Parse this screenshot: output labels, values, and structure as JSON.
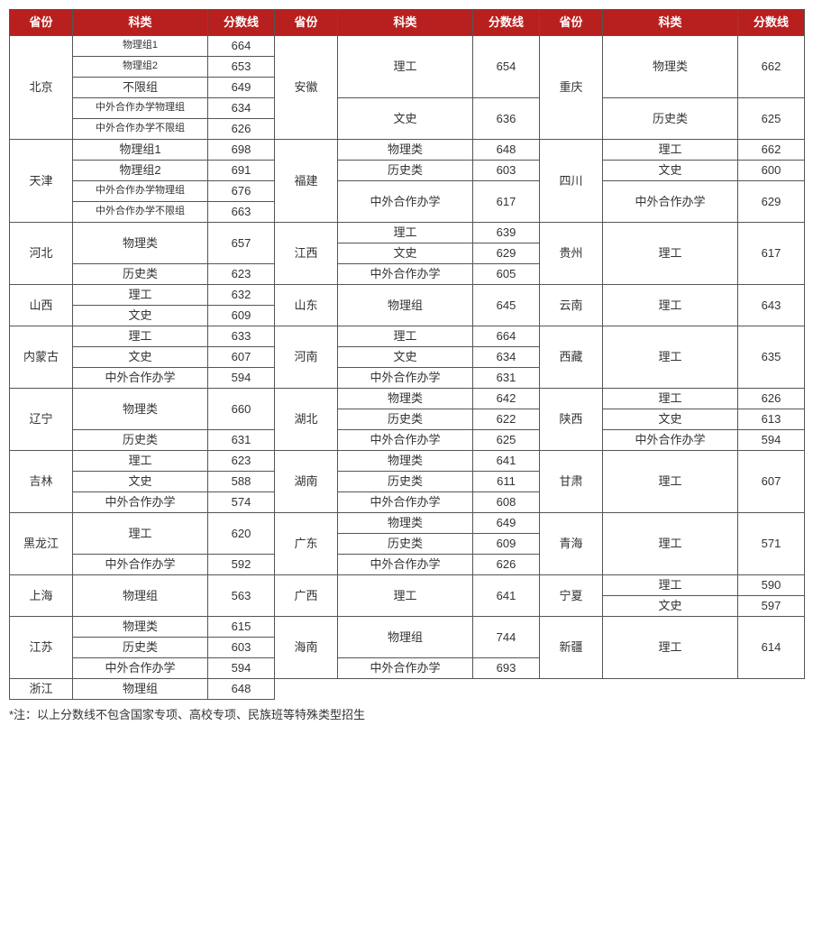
{
  "headers": {
    "province": "省份",
    "subject": "科类",
    "score": "分数线"
  },
  "footnote": "*注：以上分数线不包含国家专项、高校专项、民族班等特殊类型招生",
  "rows": [
    {
      "col1": {
        "prov": "北京",
        "span": 5
      },
      "r1": [
        {
          "t": "物理组1",
          "cls": "small"
        },
        {
          "t": "664"
        }
      ],
      "col2": {
        "prov": "安徽",
        "span": 5
      },
      "r2": [
        {
          "t": "理工",
          "span": 3
        },
        {
          "t": "654",
          "span": 3
        }
      ],
      "col3": {
        "prov": "重庆",
        "span": 5
      },
      "r3": [
        {
          "t": "物理类",
          "span": 3
        },
        {
          "t": "662",
          "span": 3
        }
      ]
    },
    {
      "r1": [
        {
          "t": "物理组2",
          "cls": "small"
        },
        {
          "t": "653"
        }
      ]
    },
    {
      "r1": [
        {
          "t": "不限组"
        },
        {
          "t": "649"
        }
      ]
    },
    {
      "r1": [
        {
          "t": "中外合作办学物理组",
          "cls": "small"
        },
        {
          "t": "634"
        }
      ],
      "r2": [
        {
          "t": "文史",
          "span": 2
        },
        {
          "t": "636",
          "span": 2
        }
      ],
      "r3": [
        {
          "t": "历史类",
          "span": 2
        },
        {
          "t": "625",
          "span": 2
        }
      ]
    },
    {
      "r1": [
        {
          "t": "中外合作办学不限组",
          "cls": "small"
        },
        {
          "t": "626"
        }
      ]
    },
    {
      "col1": {
        "prov": "天津",
        "span": 4
      },
      "r1": [
        {
          "t": "物理组1",
          "span": 1
        },
        {
          "t": "698",
          "span": 1
        }
      ],
      "col2": {
        "prov": "福建",
        "span": 4
      },
      "r2": [
        {
          "t": "物理类",
          "span": 1
        },
        {
          "t": "648",
          "span": 1
        }
      ],
      "col3": {
        "prov": "四川",
        "span": 4
      },
      "r3": [
        {
          "t": "理工",
          "span": 1
        },
        {
          "t": "662",
          "span": 1
        }
      ]
    },
    {
      "r1": [
        {
          "t": "物理组2"
        },
        {
          "t": "691"
        }
      ],
      "r2": [
        {
          "t": "历史类",
          "span": 1
        },
        {
          "t": "603",
          "span": 1
        }
      ],
      "r3": [
        {
          "t": "文史",
          "span": 1
        },
        {
          "t": "600",
          "span": 1
        }
      ]
    },
    {
      "r1": [
        {
          "t": "中外合作办学物理组",
          "cls": "small"
        },
        {
          "t": "676"
        }
      ],
      "r2": [
        {
          "t": "中外合作办学",
          "span": 2
        },
        {
          "t": "617",
          "span": 2
        }
      ],
      "r3": [
        {
          "t": "中外合作办学",
          "span": 2
        },
        {
          "t": "629",
          "span": 2
        }
      ]
    },
    {
      "r1": [
        {
          "t": "中外合作办学不限组",
          "cls": "small"
        },
        {
          "t": "663"
        }
      ]
    },
    {
      "col1": {
        "prov": "河北",
        "span": 4
      },
      "r1": [
        {
          "t": "物理类",
          "span": 2
        },
        {
          "t": "657",
          "span": 2
        }
      ],
      "col2": {
        "prov": "江西",
        "span": 4
      },
      "r2": [
        {
          "t": "理工",
          "span": 1
        },
        {
          "t": "639",
          "span": 1
        }
      ],
      "col3": {
        "prov": "贵州",
        "span": 4
      },
      "r3": [
        {
          "t": "理工",
          "span": 4
        },
        {
          "t": "617",
          "span": 4
        }
      ]
    },
    {
      "r2": [
        {
          "t": "文史",
          "span": 1
        },
        {
          "t": "629",
          "span": 1
        }
      ]
    },
    {
      "r1": [
        {
          "t": "历史类",
          "span": 2
        },
        {
          "t": "623",
          "span": 2
        }
      ],
      "r2": [
        {
          "t": "中外合作办学",
          "span": 2
        },
        {
          "t": "605",
          "span": 2
        }
      ]
    },
    {},
    {
      "col1": {
        "prov": "山西",
        "span": 4
      },
      "r1": [
        {
          "t": "理工",
          "span": 2
        },
        {
          "t": "632",
          "span": 2
        }
      ],
      "col2": {
        "prov": "山东",
        "span": 4
      },
      "r2": [
        {
          "t": "物理组",
          "span": 4
        },
        {
          "t": "645",
          "span": 4
        }
      ],
      "col3": {
        "prov": "云南",
        "span": 4
      },
      "r3": [
        {
          "t": "理工",
          "span": 4
        },
        {
          "t": "643",
          "span": 4
        }
      ]
    },
    {},
    {
      "r1": [
        {
          "t": "文史",
          "span": 2
        },
        {
          "t": "609",
          "span": 2
        }
      ]
    },
    {},
    {
      "col1": {
        "prov": "内蒙古",
        "span": 3
      },
      "r1": [
        {
          "t": "理工"
        },
        {
          "t": "633"
        }
      ],
      "col2": {
        "prov": "河南",
        "span": 3
      },
      "r2": [
        {
          "t": "理工"
        },
        {
          "t": "664"
        }
      ],
      "col3": {
        "prov": "西藏",
        "span": 3
      },
      "r3": [
        {
          "t": "理工",
          "span": 3
        },
        {
          "t": "635",
          "span": 3
        }
      ]
    },
    {
      "r1": [
        {
          "t": "文史"
        },
        {
          "t": "607"
        }
      ],
      "r2": [
        {
          "t": "文史"
        },
        {
          "t": "634"
        }
      ]
    },
    {
      "r1": [
        {
          "t": "中外合作办学"
        },
        {
          "t": "594"
        }
      ],
      "r2": [
        {
          "t": "中外合作办学"
        },
        {
          "t": "631"
        }
      ]
    },
    {
      "col1": {
        "prov": "辽宁",
        "span": 4
      },
      "r1": [
        {
          "t": "物理类",
          "span": 2
        },
        {
          "t": "660",
          "span": 2
        }
      ],
      "col2": {
        "prov": "湖北",
        "span": 4
      },
      "r2": [
        {
          "t": "物理类",
          "span": 1
        },
        {
          "t": "642",
          "span": 1
        }
      ],
      "col3": {
        "prov": "陕西",
        "span": 4
      },
      "r3": [
        {
          "t": "理工",
          "span": 1
        },
        {
          "t": "626",
          "span": 1
        }
      ]
    },
    {
      "r2": [
        {
          "t": "历史类",
          "span": 1
        },
        {
          "t": "622",
          "span": 1
        }
      ],
      "r3": [
        {
          "t": "文史",
          "span": 1
        },
        {
          "t": "613",
          "span": 1
        }
      ]
    },
    {
      "r1": [
        {
          "t": "历史类",
          "span": 2
        },
        {
          "t": "631",
          "span": 2
        }
      ],
      "r2": [
        {
          "t": "中外合作办学",
          "span": 2
        },
        {
          "t": "625",
          "span": 2
        }
      ],
      "r3": [
        {
          "t": "中外合作办学",
          "span": 2
        },
        {
          "t": "594",
          "span": 2
        }
      ]
    },
    {},
    {
      "col1": {
        "prov": "吉林",
        "span": 3
      },
      "r1": [
        {
          "t": "理工"
        },
        {
          "t": "623"
        }
      ],
      "col2": {
        "prov": "湖南",
        "span": 3
      },
      "r2": [
        {
          "t": "物理类"
        },
        {
          "t": "641"
        }
      ],
      "col3": {
        "prov": "甘肃",
        "span": 3
      },
      "r3": [
        {
          "t": "理工",
          "span": 3
        },
        {
          "t": "607",
          "span": 3
        }
      ]
    },
    {
      "r1": [
        {
          "t": "文史"
        },
        {
          "t": "588"
        }
      ],
      "r2": [
        {
          "t": "历史类"
        },
        {
          "t": "611"
        }
      ]
    },
    {
      "r1": [
        {
          "t": "中外合作办学"
        },
        {
          "t": "574"
        }
      ],
      "r2": [
        {
          "t": "中外合作办学"
        },
        {
          "t": "608"
        }
      ]
    },
    {
      "col1": {
        "prov": "黑龙江",
        "span": 4
      },
      "r1": [
        {
          "t": "理工",
          "span": 2
        },
        {
          "t": "620",
          "span": 2
        }
      ],
      "col2": {
        "prov": "广东",
        "span": 4
      },
      "r2": [
        {
          "t": "物理类",
          "span": 1
        },
        {
          "t": "649",
          "span": 1
        }
      ],
      "col3": {
        "prov": "青海",
        "span": 4
      },
      "r3": [
        {
          "t": "理工",
          "span": 4
        },
        {
          "t": "571",
          "span": 4
        }
      ]
    },
    {
      "r2": [
        {
          "t": "历史类",
          "span": 1
        },
        {
          "t": "609",
          "span": 1
        }
      ]
    },
    {
      "r1": [
        {
          "t": "中外合作办学",
          "span": 2
        },
        {
          "t": "592",
          "span": 2
        }
      ],
      "r2": [
        {
          "t": "中外合作办学",
          "span": 2
        },
        {
          "t": "626",
          "span": 2
        }
      ]
    },
    {},
    {
      "col1": {
        "prov": "上海",
        "span": 4
      },
      "r1": [
        {
          "t": "物理组",
          "span": 4
        },
        {
          "t": "563",
          "span": 4
        }
      ],
      "col2": {
        "prov": "广西",
        "span": 4
      },
      "r2": [
        {
          "t": "理工",
          "span": 4
        },
        {
          "t": "641",
          "span": 4
        }
      ],
      "col3": {
        "prov": "宁夏",
        "span": 4
      },
      "r3": [
        {
          "t": "理工",
          "span": 2
        },
        {
          "t": "590",
          "span": 2
        }
      ]
    },
    {},
    {
      "r3": [
        {
          "t": "文史",
          "span": 2
        },
        {
          "t": "597",
          "span": 2
        }
      ]
    },
    {},
    {
      "col1": {
        "prov": "江苏",
        "span": 4
      },
      "r1": [
        {
          "t": "物理类",
          "span": 1
        },
        {
          "t": "615",
          "span": 1
        }
      ],
      "col2": {
        "prov": "海南",
        "span": 4
      },
      "r2": [
        {
          "t": "物理组",
          "span": 2
        },
        {
          "t": "744",
          "span": 2
        }
      ],
      "col3": {
        "prov": "新疆",
        "span": 4
      },
      "r3": [
        {
          "t": "理工",
          "span": 4
        },
        {
          "t": "614",
          "span": 4
        }
      ]
    },
    {
      "r1": [
        {
          "t": "历史类",
          "span": 1
        },
        {
          "t": "603",
          "span": 1
        }
      ]
    },
    {
      "r1": [
        {
          "t": "中外合作办学",
          "span": 2
        },
        {
          "t": "594",
          "span": 2
        }
      ],
      "r2": [
        {
          "t": "中外合作办学",
          "span": 2
        },
        {
          "t": "693",
          "span": 2
        }
      ]
    },
    {},
    {
      "col1": {
        "prov": "浙江",
        "span": 4
      },
      "r1": [
        {
          "t": "物理组",
          "span": 4
        },
        {
          "t": "648",
          "span": 4
        }
      ],
      "col2": {
        "prov": "",
        "span": 4,
        "blank": true
      },
      "r2": [
        {
          "t": "",
          "span": 4,
          "blank": true
        },
        {
          "t": "",
          "span": 4,
          "blank": true
        }
      ],
      "col3": {
        "prov": "",
        "span": 4,
        "blank": true
      },
      "r3": [
        {
          "t": "",
          "span": 4,
          "blank": true
        },
        {
          "t": "",
          "span": 4,
          "blank": true
        }
      ]
    },
    {},
    {},
    {}
  ]
}
